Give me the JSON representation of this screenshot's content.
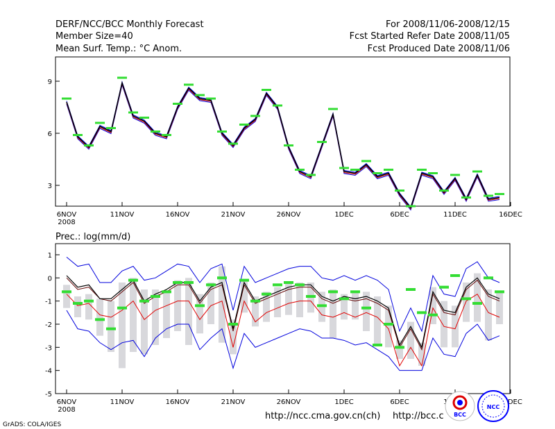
{
  "header": {
    "title": "DERF/NCC/BCC Monthly Forecast",
    "member_size": "Member Size=40",
    "variable": "Mean Surf. Temp.: °C Anom.",
    "period": "For 2008/11/06-2008/12/15",
    "started": "Fcst Started Refer Date 2008/11/05",
    "produced": "Fcst Produced Date 2008/11/06"
  },
  "colors": {
    "ensemble_mean": "#000000",
    "observed_like": "#33dd33",
    "red_series": "#e00000",
    "blue_series": "#0000dd",
    "bars": "#d8d8dc"
  },
  "chart_data": [
    {
      "type": "line",
      "title": "Mean Surf. Temp.: °C Anom.",
      "ylim": [
        1.8,
        10.4
      ],
      "yticks": [
        "3",
        "6",
        "9"
      ],
      "xticks": [
        "6NOV",
        "11NOV",
        "16NOV",
        "21NOV",
        "26NOV",
        "1DEC",
        "6DEC",
        "11DEC",
        "16DEC"
      ],
      "year_label": "2008",
      "days": 40,
      "series": [
        {
          "name": "mean",
          "values": [
            7.8,
            5.8,
            5.2,
            6.4,
            6.1,
            8.9,
            7.0,
            6.7,
            6.0,
            5.8,
            7.5,
            8.6,
            8.0,
            7.9,
            6.0,
            5.3,
            6.3,
            6.8,
            8.3,
            7.5,
            5.2,
            3.8,
            3.5,
            5.3,
            7.1,
            3.8,
            3.7,
            4.2,
            3.5,
            3.7,
            2.5,
            1.7,
            3.7,
            3.5,
            2.6,
            3.4,
            2.2,
            3.6,
            2.2,
            2.3
          ]
        },
        {
          "name": "green_marks",
          "values": [
            8.0,
            5.9,
            5.3,
            6.6,
            6.3,
            9.2,
            7.2,
            6.9,
            6.1,
            5.9,
            7.7,
            8.8,
            8.2,
            8.0,
            6.1,
            5.4,
            6.5,
            7.0,
            8.5,
            7.6,
            5.3,
            3.9,
            3.6,
            5.5,
            7.4,
            4.0,
            3.9,
            4.4,
            3.7,
            3.9,
            2.7,
            1.8,
            3.9,
            3.7,
            2.7,
            3.6,
            2.3,
            3.8,
            2.4,
            2.5
          ]
        }
      ]
    },
    {
      "type": "line",
      "title": "Prec.: log(mm/d)",
      "ylim": [
        -5,
        1
      ],
      "yticks": [
        "-5",
        "-4",
        "-3",
        "-2",
        "-1",
        "0",
        "1"
      ],
      "xticks": [
        "6NOV",
        "11NOV",
        "16NOV",
        "21NOV",
        "26NOV",
        "1DEC",
        "6DEC",
        "11DEC",
        "16DEC"
      ],
      "year_label": "2008",
      "days": 40,
      "series": [
        {
          "name": "mean",
          "values": [
            0.1,
            -0.4,
            -0.3,
            -0.9,
            -0.9,
            -0.5,
            -0.1,
            -1.0,
            -0.7,
            -0.5,
            -0.2,
            -0.2,
            -1.0,
            -0.4,
            -0.2,
            -2.2,
            -0.2,
            -1.0,
            -0.8,
            -0.6,
            -0.4,
            -0.3,
            -0.3,
            -0.8,
            -1.0,
            -0.8,
            -0.9,
            -0.8,
            -1.0,
            -1.3,
            -2.9,
            -2.1,
            -3.0,
            -0.6,
            -1.4,
            -1.5,
            -0.4,
            0.0,
            -0.7,
            -0.9
          ]
        },
        {
          "name": "mean_dark",
          "values": [
            0.0,
            -0.5,
            -0.4,
            -0.9,
            -1.0,
            -0.6,
            -0.2,
            -1.1,
            -0.8,
            -0.6,
            -0.3,
            -0.3,
            -1.1,
            -0.5,
            -0.3,
            -2.3,
            -0.3,
            -1.1,
            -0.9,
            -0.7,
            -0.5,
            -0.4,
            -0.4,
            -0.9,
            -1.1,
            -0.9,
            -1.0,
            -0.9,
            -1.1,
            -1.4,
            -3.0,
            -2.2,
            -3.1,
            -0.7,
            -1.5,
            -1.6,
            -0.5,
            -0.1,
            -0.8,
            -1.0
          ]
        },
        {
          "name": "red",
          "values": [
            -0.7,
            -1.2,
            -1.1,
            -1.6,
            -1.7,
            -1.4,
            -1.0,
            -1.8,
            -1.4,
            -1.2,
            -1.0,
            -1.0,
            -1.8,
            -1.2,
            -1.0,
            -3.0,
            -1.0,
            -1.9,
            -1.5,
            -1.3,
            -1.1,
            -1.0,
            -1.0,
            -1.6,
            -1.7,
            -1.5,
            -1.7,
            -1.5,
            -1.7,
            -2.2,
            -3.8,
            -3.0,
            -3.8,
            -1.3,
            -2.1,
            -2.2,
            -1.0,
            -0.7,
            -1.5,
            -1.7
          ]
        },
        {
          "name": "blue_upper",
          "values": [
            0.9,
            0.5,
            0.6,
            -0.2,
            -0.2,
            0.3,
            0.5,
            -0.1,
            0.0,
            0.3,
            0.6,
            0.5,
            -0.2,
            0.4,
            0.6,
            -1.4,
            0.5,
            -0.2,
            0.0,
            0.2,
            0.4,
            0.5,
            0.5,
            0.0,
            -0.1,
            0.1,
            -0.1,
            0.1,
            -0.1,
            -0.5,
            -2.3,
            -1.3,
            -2.3,
            0.1,
            -0.7,
            -0.8,
            0.4,
            0.7,
            0.0,
            -0.2
          ]
        },
        {
          "name": "blue_lower",
          "values": [
            -1.4,
            -2.2,
            -2.3,
            -2.8,
            -3.1,
            -2.8,
            -2.7,
            -3.4,
            -2.6,
            -2.2,
            -2.0,
            -2.0,
            -3.1,
            -2.6,
            -2.2,
            -3.9,
            -2.4,
            -3.0,
            -2.8,
            -2.6,
            -2.4,
            -2.2,
            -2.3,
            -2.6,
            -2.6,
            -2.7,
            -2.9,
            -2.8,
            -3.1,
            -3.4,
            -4.0,
            -4.0,
            -4.0,
            -2.6,
            -3.3,
            -3.4,
            -2.4,
            -2.0,
            -2.7,
            -2.5
          ]
        },
        {
          "name": "green_marks",
          "values": [
            -0.6,
            -1.1,
            -1.0,
            -1.8,
            -2.2,
            -1.3,
            -0.1,
            -1.0,
            -0.8,
            -0.6,
            -0.2,
            -0.2,
            -1.2,
            -0.3,
            0.0,
            -2.0,
            -0.1,
            -1.0,
            -0.7,
            -0.3,
            -0.2,
            -0.3,
            -0.8,
            -1.2,
            -0.6,
            -0.9,
            -0.6,
            -1.3,
            -2.9,
            -2.0,
            -3.0,
            -0.5,
            -1.5,
            -1.6,
            -0.4,
            0.1,
            -0.9,
            -1.1,
            0.0,
            -0.6
          ]
        },
        {
          "name": "bar_top",
          "values": [
            -0.3,
            -0.8,
            -0.7,
            -0.9,
            -1.0,
            -0.2,
            0.0,
            -0.5,
            -0.5,
            -0.6,
            -0.1,
            0.0,
            -0.7,
            -0.2,
            0.5,
            -1.8,
            -0.1,
            -0.8,
            -0.6,
            -0.4,
            -0.2,
            -0.2,
            -0.2,
            -0.6,
            -0.5,
            -0.7,
            -0.6,
            -0.6,
            -0.8,
            -1.2,
            -2.7,
            -1.9,
            -2.8,
            -0.4,
            -1.0,
            -1.2,
            -0.2,
            0.2,
            -0.5,
            -0.6
          ]
        },
        {
          "name": "bar_bottom",
          "values": [
            -1.3,
            -1.7,
            -1.8,
            -2.5,
            -3.2,
            -3.9,
            -3.2,
            -3.3,
            -2.9,
            -2.6,
            -2.3,
            -2.9,
            -2.4,
            -2.0,
            -2.8,
            -3.3,
            -1.5,
            -2.1,
            -1.9,
            -1.7,
            -1.6,
            -1.7,
            -1.5,
            -1.9,
            -2.6,
            -1.8,
            -1.8,
            -2.3,
            -2.9,
            -3.0,
            -3.5,
            -3.5,
            -3.8,
            -2.0,
            -3.0,
            -3.0,
            -1.9,
            -1.9,
            -2.7,
            -2.0
          ]
        }
      ]
    }
  ],
  "prec_label": "Prec.: log(mm/d)",
  "footer": {
    "url1": "http://ncc.cma.gov.cn(ch)",
    "url2": "http://bcc.c",
    "credit": "GrADS: COLA/IGES"
  },
  "logos": {
    "bcc": "BCC",
    "ncc": "NCC"
  }
}
